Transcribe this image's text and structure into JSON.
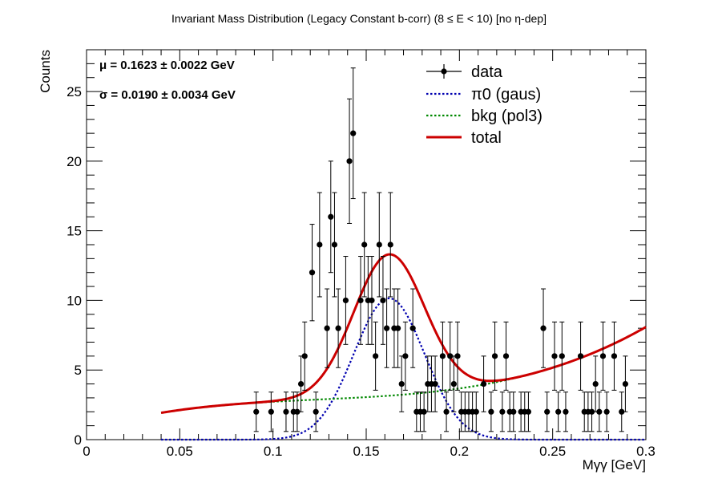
{
  "chart_data": {
    "type": "scatter",
    "title": "Invariant Mass Distribution (Legacy Constant b-corr)   (8 ≤ E < 10)   [no η-dep]",
    "xlabel": "Mγγ  [GeV]",
    "ylabel": "Counts",
    "xlim": [
      0,
      0.3
    ],
    "ylim": [
      0,
      28
    ],
    "xticks": [
      "0",
      "0.05",
      "0.1",
      "0.15",
      "0.2",
      "0.25",
      "0.3"
    ],
    "yticks": [
      "0",
      "5",
      "10",
      "15",
      "20",
      "25"
    ],
    "grid": false,
    "legend_position": "top-right",
    "stats": {
      "mu": "μ = 0.1623  ± 0.0022 GeV",
      "sigma": "σ = 0.0190  ± 0.0034 GeV"
    },
    "series": [
      {
        "name": "data",
        "kind": "points-with-errors",
        "color": "#000000",
        "x": [
          0.091,
          0.099,
          0.107,
          0.111,
          0.113,
          0.115,
          0.117,
          0.121,
          0.123,
          0.125,
          0.129,
          0.131,
          0.133,
          0.135,
          0.139,
          0.141,
          0.143,
          0.147,
          0.149,
          0.151,
          0.153,
          0.155,
          0.157,
          0.159,
          0.161,
          0.163,
          0.165,
          0.167,
          0.169,
          0.171,
          0.175,
          0.177,
          0.179,
          0.181,
          0.183,
          0.185,
          0.187,
          0.191,
          0.193,
          0.195,
          0.197,
          0.199,
          0.201,
          0.203,
          0.205,
          0.207,
          0.209,
          0.213,
          0.217,
          0.219,
          0.223,
          0.225,
          0.227,
          0.229,
          0.233,
          0.235,
          0.237,
          0.245,
          0.247,
          0.251,
          0.253,
          0.255,
          0.257,
          0.265,
          0.267,
          0.269,
          0.271,
          0.273,
          0.275,
          0.277,
          0.279,
          0.283,
          0.287,
          0.289
        ],
        "y": [
          2,
          2,
          2,
          2,
          2,
          4,
          6,
          12,
          2,
          14,
          8,
          16,
          14,
          8,
          10,
          20,
          22,
          10,
          14,
          10,
          10,
          6,
          14,
          10,
          8,
          14,
          8,
          8,
          4,
          6,
          8,
          2,
          2,
          2,
          4,
          4,
          4,
          6,
          2,
          6,
          4,
          6,
          2,
          2,
          2,
          2,
          2,
          4,
          2,
          6,
          2,
          6,
          2,
          2,
          2,
          2,
          2,
          8,
          2,
          6,
          2,
          6,
          2,
          6,
          2,
          2,
          2,
          4,
          2,
          6,
          2,
          6,
          2,
          4
        ],
        "error": "sqrt(N)"
      },
      {
        "name": "π0 (gaus)",
        "kind": "curve",
        "color": "#0000b0",
        "style": "dotted",
        "formula": "A*exp(-0.5*((x-mu)/sigma)^2)",
        "A": 10.15,
        "mu": 0.1623,
        "sigma": 0.019,
        "x_range": [
          0.04,
          0.3
        ]
      },
      {
        "name": "bkg (pol3)",
        "kind": "curve",
        "color": "#008800",
        "style": "dotted",
        "coeffs": [
          0.6967,
          40.72,
          -280.1,
          755.0
        ],
        "x_range": [
          0.04,
          0.3
        ]
      },
      {
        "name": "total",
        "kind": "curve",
        "color": "#cc0000",
        "style": "solid",
        "formula": "gaus + pol3",
        "x_range": [
          0.04,
          0.3
        ]
      }
    ]
  }
}
